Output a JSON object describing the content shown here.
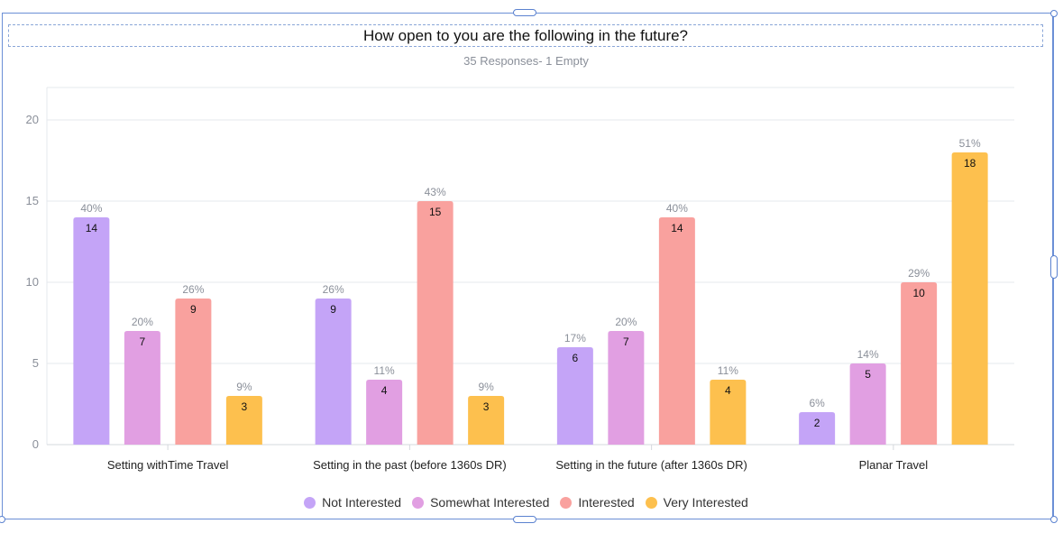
{
  "header": {
    "title": "How open to you are the following in the future?",
    "subtitle": "35 Responses- 1 Empty"
  },
  "chart_data": {
    "type": "bar",
    "title": "How open to you are the following in the future?",
    "subtitle": "35 Responses- 1 Empty",
    "categories": [
      "Setting withTime Travel",
      "Setting in the past (before 1360s DR)",
      "Setting in the future (after 1360s DR)",
      "Planar Travel"
    ],
    "series": [
      {
        "name": "Not Interested",
        "color": "#c4a4f7",
        "values": [
          14,
          9,
          6,
          2
        ],
        "percents": [
          "40%",
          "26%",
          "17%",
          "6%"
        ]
      },
      {
        "name": "Somewhat Interested",
        "color": "#e19fe2",
        "values": [
          7,
          4,
          7,
          5
        ],
        "percents": [
          "20%",
          "11%",
          "20%",
          "14%"
        ]
      },
      {
        "name": "Interested",
        "color": "#f9a19e",
        "values": [
          9,
          15,
          14,
          10
        ],
        "percents": [
          "26%",
          "43%",
          "40%",
          "29%"
        ]
      },
      {
        "name": "Very Interested",
        "color": "#fdc04e",
        "values": [
          3,
          3,
          4,
          18
        ],
        "percents": [
          "9%",
          "9%",
          "11%",
          "51%"
        ]
      }
    ],
    "yticks": [
      0,
      5,
      10,
      15,
      20
    ],
    "ylim": [
      0,
      20
    ],
    "xlabel": "",
    "ylabel": "",
    "grid": true,
    "legend_position": "bottom"
  }
}
